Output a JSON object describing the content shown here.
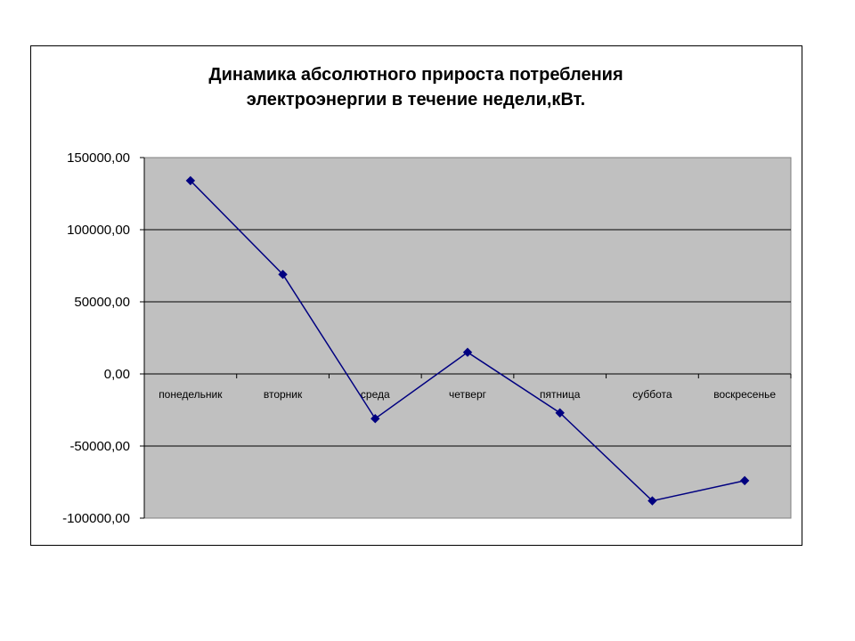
{
  "chart_data": {
    "type": "line",
    "title": "Динамика абсолютного прироста потребления электроэнергии в течение недели,кВт.",
    "title_lines": [
      "Динамика абсолютного прироста потребления",
      "электроэнергии в течение недели,кВт."
    ],
    "categories": [
      "понедельник",
      "вторник",
      "среда",
      "четверг",
      "пятница",
      "суббота",
      "воскресенье"
    ],
    "series": [
      {
        "values": [
          134000,
          69000,
          -31000,
          15000,
          -27000,
          -88000,
          -74000
        ]
      }
    ],
    "ylim": [
      -100000,
      150000
    ],
    "yticks": [
      150000,
      100000,
      50000,
      0,
      -50000,
      -100000
    ],
    "ytick_labels": [
      "150000,00",
      "100000,00",
      "50000,00",
      "0,00",
      "-50000,00",
      "-100000,00"
    ],
    "grid": true,
    "legend": "none",
    "colors": {
      "plot_background": "#c0c0c0",
      "line": "#000080",
      "marker": "#000080",
      "gridline": "#000000"
    }
  }
}
